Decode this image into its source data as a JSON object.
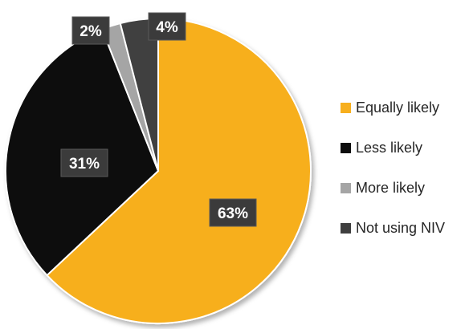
{
  "chart_data": {
    "type": "pie",
    "title": "",
    "slices": [
      {
        "name": "Equally likely",
        "value": 63,
        "label": "63%",
        "color": "#F7AF1E"
      },
      {
        "name": "Less likely",
        "value": 31,
        "label": "31%",
        "color": "#0D0D0D"
      },
      {
        "name": "More likely",
        "value": 2,
        "label": "2%",
        "color": "#A5A5A5"
      },
      {
        "name": "Not using NIV",
        "value": 4,
        "label": "4%",
        "color": "#3F3F3F"
      }
    ],
    "start_angle": "12 o'clock",
    "direction": "clockwise",
    "legend_position": "right"
  }
}
